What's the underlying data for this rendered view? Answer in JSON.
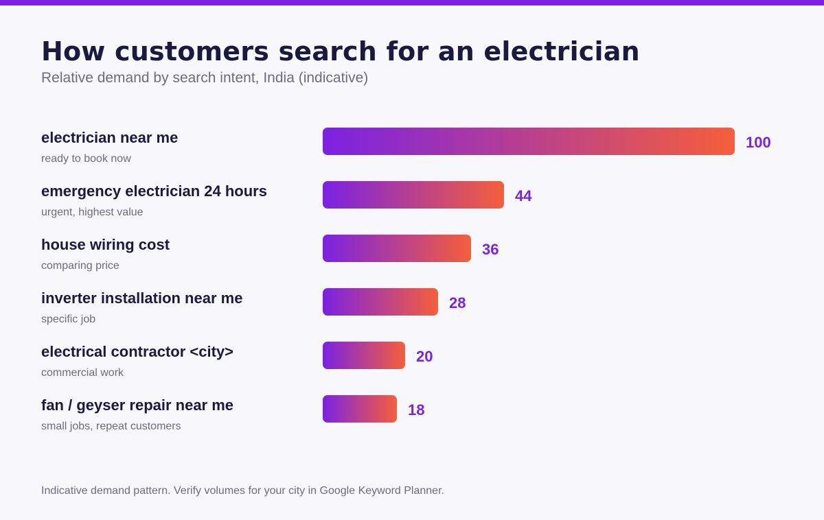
{
  "header": {
    "title": "How customers search for an electrician",
    "subtitle": "Relative demand by search intent, India (indicative)"
  },
  "footnote": "Indicative demand pattern. Verify volumes for your city in Google Keyword Planner.",
  "colors": {
    "accent_bar": "#7a22e0",
    "gradient_start": "#7b22e3",
    "gradient_end": "#f55f3a",
    "value_label": "#7b22e3",
    "title": "#1c1940",
    "muted": "#6d6b80"
  },
  "chart_data": {
    "type": "bar",
    "orientation": "horizontal",
    "categories": [
      "electrician near me",
      "emergency electrician 24 hours",
      "house wiring cost",
      "inverter installation near me",
      "electrical contractor <city>",
      "fan / geyser repair near me"
    ],
    "category_notes": [
      "ready to book now",
      "urgent, highest value",
      "comparing price",
      "specific job",
      "commercial work",
      "small jobs, repeat customers"
    ],
    "values": [
      100,
      44,
      36,
      28,
      20,
      18
    ],
    "xlim": [
      0,
      100
    ],
    "grid": false,
    "legend": "none"
  }
}
